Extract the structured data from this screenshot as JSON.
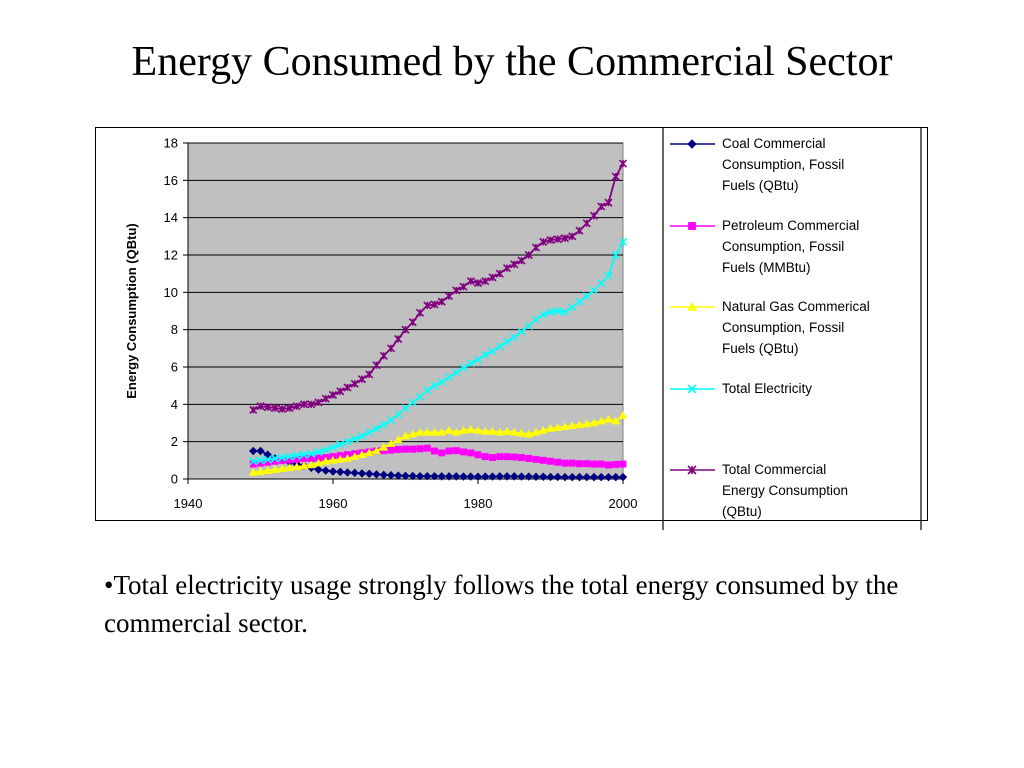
{
  "slide": {
    "title": "Energy Consumed by the Commercial Sector",
    "bullet": "•Total electricity usage strongly follows the total energy consumed by the commercial sector."
  },
  "chart_data": {
    "type": "line",
    "title": "",
    "xlabel": "",
    "ylabel": "Energy Consumption (QBtu)",
    "xlim": [
      1940,
      2000
    ],
    "ylim": [
      0,
      18
    ],
    "xticks": [
      1940,
      1960,
      1980,
      2000
    ],
    "yticks": [
      0,
      2,
      4,
      6,
      8,
      10,
      12,
      14,
      16,
      18
    ],
    "grid": "horizontal",
    "plot_background": "#c0c0c0",
    "legend_position": "right",
    "x": [
      1949,
      1950,
      1951,
      1952,
      1953,
      1954,
      1955,
      1956,
      1957,
      1958,
      1959,
      1960,
      1961,
      1962,
      1963,
      1964,
      1965,
      1966,
      1967,
      1968,
      1969,
      1970,
      1971,
      1972,
      1973,
      1974,
      1975,
      1976,
      1977,
      1978,
      1979,
      1980,
      1981,
      1982,
      1983,
      1984,
      1985,
      1986,
      1987,
      1988,
      1989,
      1990,
      1991,
      1992,
      1993,
      1994,
      1995,
      1996,
      1997,
      1998,
      1999,
      2000
    ],
    "series": [
      {
        "name": "Coal Commercial Consumption, Fossil Fuels (QBtu)",
        "color": "#000080",
        "marker": "diamond",
        "values": [
          1.5,
          1.5,
          1.3,
          1.1,
          1.0,
          0.9,
          0.8,
          0.7,
          0.6,
          0.5,
          0.45,
          0.4,
          0.38,
          0.35,
          0.33,
          0.3,
          0.28,
          0.25,
          0.22,
          0.2,
          0.18,
          0.17,
          0.16,
          0.15,
          0.15,
          0.15,
          0.14,
          0.14,
          0.14,
          0.13,
          0.13,
          0.12,
          0.13,
          0.13,
          0.14,
          0.14,
          0.14,
          0.13,
          0.13,
          0.12,
          0.12,
          0.11,
          0.11,
          0.1,
          0.1,
          0.1,
          0.1,
          0.1,
          0.1,
          0.1,
          0.1,
          0.1
        ]
      },
      {
        "name": "Petroleum Commercial Consumption, Fossil Fuels (MMBtu)",
        "color": "#ff00ff",
        "marker": "square",
        "values": [
          0.8,
          0.85,
          0.9,
          0.95,
          1.0,
          1.02,
          1.05,
          1.1,
          1.1,
          1.12,
          1.15,
          1.2,
          1.25,
          1.3,
          1.35,
          1.4,
          1.45,
          1.5,
          1.52,
          1.55,
          1.58,
          1.6,
          1.6,
          1.62,
          1.65,
          1.5,
          1.4,
          1.5,
          1.52,
          1.45,
          1.4,
          1.3,
          1.2,
          1.15,
          1.2,
          1.2,
          1.18,
          1.15,
          1.1,
          1.05,
          1.0,
          0.95,
          0.9,
          0.85,
          0.85,
          0.82,
          0.82,
          0.8,
          0.8,
          0.75,
          0.78,
          0.8
        ]
      },
      {
        "name": "Natural Gas Commerical Consumption, Fossil Fuels (QBtu)",
        "color": "#ffff00",
        "marker": "triangle",
        "values": [
          0.35,
          0.4,
          0.45,
          0.5,
          0.55,
          0.6,
          0.65,
          0.7,
          0.75,
          0.85,
          0.95,
          1.0,
          1.05,
          1.1,
          1.2,
          1.3,
          1.4,
          1.5,
          1.7,
          1.9,
          2.1,
          2.3,
          2.4,
          2.5,
          2.5,
          2.5,
          2.5,
          2.6,
          2.5,
          2.6,
          2.65,
          2.6,
          2.55,
          2.55,
          2.5,
          2.55,
          2.5,
          2.45,
          2.4,
          2.5,
          2.6,
          2.7,
          2.75,
          2.8,
          2.85,
          2.9,
          2.95,
          3.0,
          3.1,
          3.2,
          3.1,
          3.4
        ]
      },
      {
        "name": "Total Electricity",
        "color": "#00ffff",
        "marker": "x",
        "values": [
          0.95,
          1.0,
          1.05,
          1.1,
          1.15,
          1.2,
          1.25,
          1.3,
          1.35,
          1.45,
          1.55,
          1.7,
          1.85,
          2.0,
          2.15,
          2.3,
          2.5,
          2.7,
          2.9,
          3.15,
          3.45,
          3.8,
          4.1,
          4.4,
          4.75,
          5.0,
          5.2,
          5.45,
          5.7,
          5.95,
          6.2,
          6.4,
          6.65,
          6.85,
          7.1,
          7.35,
          7.6,
          7.9,
          8.2,
          8.55,
          8.8,
          8.95,
          9.0,
          8.95,
          9.2,
          9.5,
          9.8,
          10.1,
          10.5,
          10.9,
          12.0,
          12.7
        ]
      },
      {
        "name": "Total Commercial Energy Consumption (QBtu)",
        "color": "#800080",
        "marker": "star",
        "values": [
          3.7,
          3.9,
          3.85,
          3.8,
          3.75,
          3.8,
          3.9,
          4.0,
          4.0,
          4.1,
          4.3,
          4.5,
          4.7,
          4.9,
          5.1,
          5.35,
          5.6,
          6.1,
          6.6,
          7.0,
          7.5,
          8.0,
          8.4,
          8.9,
          9.3,
          9.35,
          9.5,
          9.8,
          10.1,
          10.3,
          10.6,
          10.5,
          10.6,
          10.8,
          11.0,
          11.3,
          11.5,
          11.7,
          12.0,
          12.4,
          12.7,
          12.8,
          12.85,
          12.9,
          13.0,
          13.3,
          13.7,
          14.1,
          14.6,
          14.8,
          16.2,
          16.9
        ]
      }
    ]
  }
}
